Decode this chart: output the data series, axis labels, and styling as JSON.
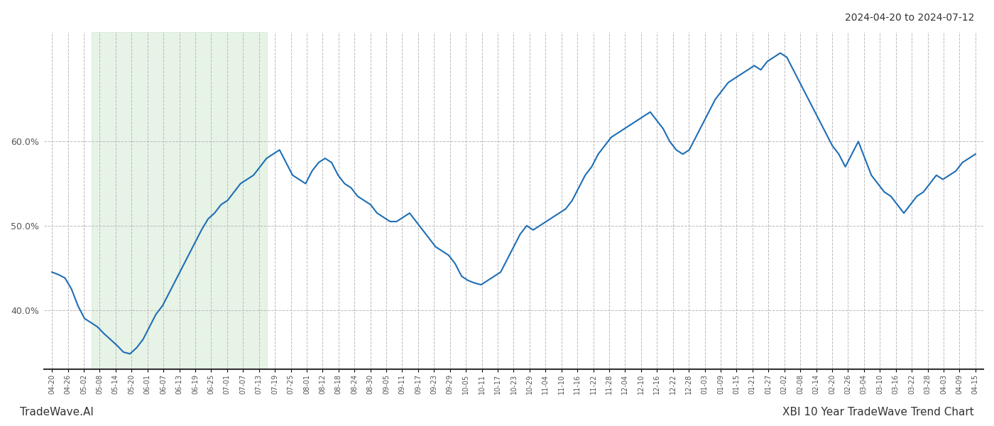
{
  "title_right": "2024-04-20 to 2024-07-12",
  "footer_left": "TradeWave.AI",
  "footer_right": "XBI 10 Year TradeWave Trend Chart",
  "line_color": "#1f6eb5",
  "line_width": 1.5,
  "highlight_color": "#c8e6c9",
  "highlight_alpha": 0.45,
  "background_color": "#ffffff",
  "grid_color": "#bbbbbb",
  "grid_style": "--",
  "ylim": [
    33,
    73
  ],
  "yticks": [
    40.0,
    50.0,
    60.0
  ],
  "highlight_start_label": "05-08",
  "highlight_end_label": "07-13",
  "x_labels": [
    "04-20",
    "04-26",
    "05-02",
    "05-08",
    "05-14",
    "05-20",
    "06-01",
    "06-07",
    "06-13",
    "06-19",
    "06-25",
    "07-01",
    "07-07",
    "07-13",
    "07-19",
    "07-25",
    "08-01",
    "08-12",
    "08-18",
    "08-24",
    "08-30",
    "09-05",
    "09-11",
    "09-17",
    "09-23",
    "09-29",
    "10-05",
    "10-11",
    "10-17",
    "10-23",
    "10-29",
    "11-04",
    "11-10",
    "11-16",
    "11-22",
    "11-28",
    "12-04",
    "12-10",
    "12-16",
    "12-22",
    "12-28",
    "01-03",
    "01-09",
    "01-15",
    "01-21",
    "01-27",
    "02-02",
    "02-08",
    "02-14",
    "02-20",
    "02-26",
    "03-04",
    "03-10",
    "03-16",
    "03-22",
    "03-28",
    "04-03",
    "04-09",
    "04-15"
  ],
  "values": [
    44.5,
    44.2,
    43.8,
    42.5,
    40.5,
    39.0,
    38.5,
    38.0,
    37.2,
    36.5,
    35.8,
    35.0,
    34.8,
    35.5,
    36.5,
    38.0,
    39.5,
    40.5,
    42.0,
    43.5,
    45.0,
    46.5,
    48.0,
    49.5,
    50.8,
    51.5,
    52.5,
    53.0,
    54.0,
    55.0,
    55.5,
    56.0,
    57.0,
    58.0,
    58.5,
    59.0,
    57.5,
    56.0,
    55.5,
    55.0,
    56.5,
    57.5,
    58.0,
    57.5,
    56.0,
    55.0,
    54.5,
    53.5,
    53.0,
    52.5,
    51.5,
    51.0,
    50.5,
    50.5,
    51.0,
    51.5,
    50.5,
    49.5,
    48.5,
    47.5,
    47.0,
    46.5,
    45.5,
    44.0,
    43.5,
    43.2,
    43.0,
    43.5,
    44.0,
    44.5,
    46.0,
    47.5,
    49.0,
    50.0,
    49.5,
    50.0,
    50.5,
    51.0,
    51.5,
    52.0,
    53.0,
    54.5,
    56.0,
    57.0,
    58.5,
    59.5,
    60.5,
    61.0,
    61.5,
    62.0,
    62.5,
    63.0,
    63.5,
    62.5,
    61.5,
    60.0,
    59.0,
    58.5,
    59.0,
    60.5,
    62.0,
    63.5,
    65.0,
    66.0,
    67.0,
    67.5,
    68.0,
    68.5,
    69.0,
    68.5,
    69.5,
    70.0,
    70.5,
    70.0,
    68.5,
    67.0,
    65.5,
    64.0,
    62.5,
    61.0,
    59.5,
    58.5,
    57.0,
    58.5,
    60.0,
    58.0,
    56.0,
    55.0,
    54.0,
    53.5,
    52.5,
    51.5,
    52.5,
    53.5,
    54.0,
    55.0,
    56.0,
    55.5,
    56.0,
    56.5,
    57.5,
    58.0,
    58.5
  ]
}
